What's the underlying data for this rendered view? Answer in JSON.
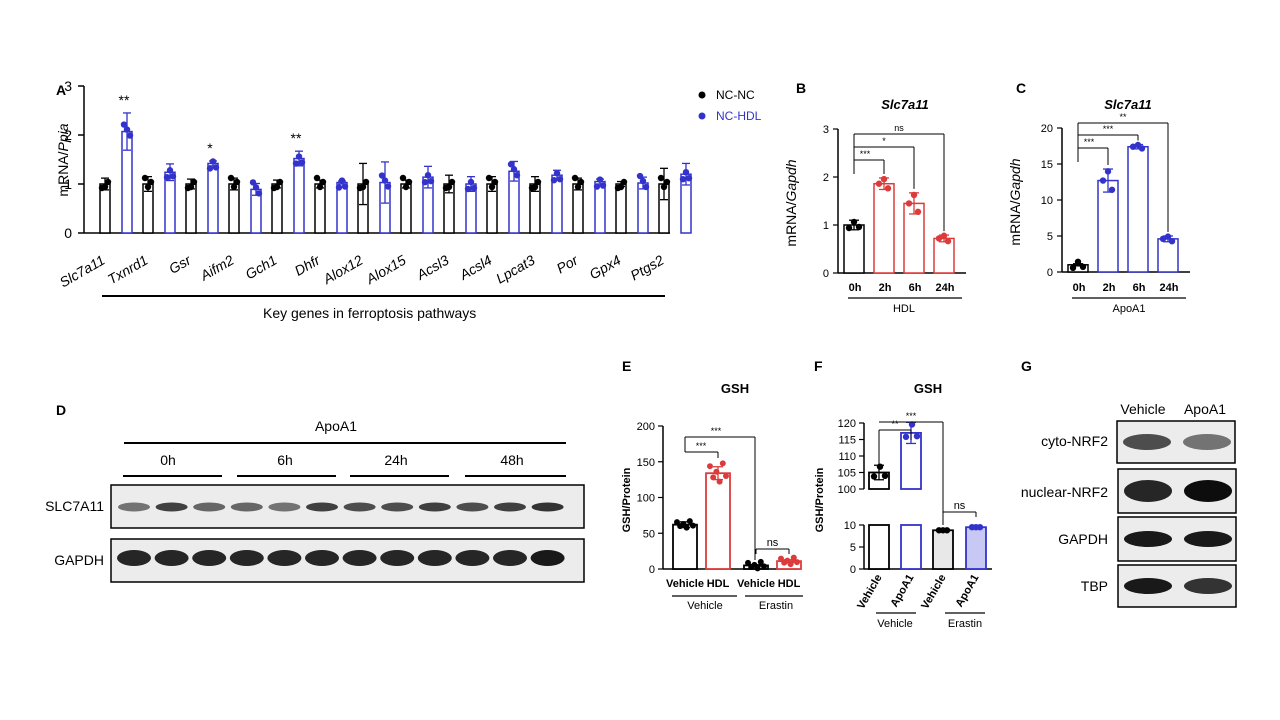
{
  "colors": {
    "black": "#000000",
    "blue": "#3333cc",
    "red": "#dd3b3b",
    "lightblue": "#c8c8f4",
    "fill": "#ffffff",
    "grey": "#e8e8e8"
  },
  "chart_data": [
    {
      "panel": "A",
      "type": "bar",
      "ylabel_prefix": "mRNA/",
      "ylabel_italic": "Ppia",
      "ylim": [
        0,
        3
      ],
      "yticks": [
        "0",
        "1",
        "2",
        "3"
      ],
      "xlabel": "Key genes in ferroptosis pathways",
      "legend": [
        "NC-NC",
        "NC-HDL"
      ],
      "categories": [
        "Slc7a11",
        "Txnrd1",
        "Gsr",
        "Aifm2",
        "Gch1",
        "Dhfr",
        "Alox12",
        "Alox15",
        "Acsl3",
        "Acsl4",
        "Lpcat3",
        "Por",
        "Gpx4",
        "Ptgs2"
      ],
      "series": [
        {
          "name": "NC-NC",
          "values": [
            1.0,
            1.0,
            1.0,
            1.0,
            1.0,
            1.0,
            1.0,
            1.0,
            1.0,
            1.0,
            1.0,
            1.0,
            1.0,
            1.0
          ],
          "err": [
            0.12,
            0.15,
            0.1,
            0.12,
            0.08,
            0.08,
            0.42,
            0.08,
            0.18,
            0.15,
            0.15,
            0.12,
            0.05,
            0.32
          ]
        },
        {
          "name": "NC-HDL",
          "values": [
            2.07,
            1.24,
            1.42,
            0.89,
            1.52,
            1.03,
            1.03,
            1.14,
            1.0,
            1.26,
            1.18,
            1.05,
            1.02,
            1.2
          ],
          "err": [
            0.38,
            0.17,
            0.05,
            0.12,
            0.15,
            0.03,
            0.42,
            0.22,
            0.15,
            0.2,
            0.1,
            0.05,
            0.12,
            0.22
          ]
        }
      ],
      "significance": [
        {
          "index": 0,
          "label": "**"
        },
        {
          "index": 2,
          "label": "*"
        },
        {
          "index": 4,
          "label": "**"
        }
      ]
    },
    {
      "panel": "B",
      "type": "bar",
      "title": "Slc7a11",
      "ylabel_prefix": "mRNA/",
      "ylabel_italic": "Gapdh",
      "ylim": [
        0,
        3
      ],
      "yticks": [
        "0",
        "1",
        "2",
        "3"
      ],
      "categories": [
        "0h",
        "2h",
        "6h",
        "24h"
      ],
      "values": [
        1.0,
        1.86,
        1.45,
        0.72
      ],
      "err": [
        0.1,
        0.12,
        0.22,
        0.07
      ],
      "group": "HDL",
      "comparisons": [
        "***",
        "*",
        "ns"
      ]
    },
    {
      "panel": "C",
      "type": "bar",
      "title": "Slc7a11",
      "ylabel_prefix": "mRNA/",
      "ylabel_italic": "Gapdh",
      "ylim": [
        0,
        20
      ],
      "yticks": [
        "0",
        "5",
        "10",
        "15",
        "20"
      ],
      "categories": [
        "0h",
        "2h",
        "6h",
        "24h"
      ],
      "values": [
        1.0,
        12.7,
        17.4,
        4.6
      ],
      "err": [
        0.15,
        1.6,
        0.3,
        0.4
      ],
      "group": "ApoA1",
      "comparisons": [
        "***",
        "***",
        "**"
      ]
    },
    {
      "panel": "E",
      "type": "bar",
      "title": "GSH",
      "ylabel": "GSH/Protein",
      "ylim": [
        0,
        200
      ],
      "yticks": [
        "0",
        "50",
        "100",
        "150",
        "200"
      ],
      "categories": [
        "Vehicle",
        "HDL",
        "Vehicle",
        "HDL"
      ],
      "groups": [
        "Vehicle",
        "Erastin"
      ],
      "values": [
        62,
        134,
        5,
        11
      ],
      "err": [
        4,
        9,
        1,
        2
      ],
      "comparisons": [
        "***",
        "***",
        "ns"
      ]
    },
    {
      "panel": "F",
      "type": "bar",
      "title": "GSH",
      "ylabel": "GSH/Protein",
      "yticks": [
        "0",
        "5",
        "10",
        "100",
        "105",
        "110",
        "115",
        "120"
      ],
      "categories": [
        "Vehicle",
        "ApoA1",
        "Vehicle",
        "ApoA1"
      ],
      "groups": [
        "Vehicle",
        "Erastin"
      ],
      "values": [
        105,
        117,
        8.8,
        9.5
      ],
      "err": [
        2.2,
        3.2,
        0.1,
        0.4
      ],
      "comparisons": [
        "**",
        "***",
        "ns"
      ]
    }
  ],
  "panel_letters": {
    "A": "A",
    "B": "B",
    "C": "C",
    "D": "D",
    "E": "E",
    "F": "F",
    "G": "G"
  },
  "blot_d": {
    "treatment": "ApoA1",
    "timepoints": [
      "0h",
      "6h",
      "24h",
      "48h"
    ],
    "rows": [
      "SLC7A11",
      "GAPDH"
    ],
    "slc7a11_intensity": [
      0.55,
      0.75,
      0.6,
      0.6,
      0.55,
      0.75,
      0.7,
      0.7,
      0.75,
      0.7,
      0.75,
      0.8
    ],
    "gapdh_intensity": [
      0.85,
      0.85,
      0.85,
      0.85,
      0.85,
      0.85,
      0.85,
      0.85,
      0.85,
      0.85,
      0.85,
      0.9
    ]
  },
  "blot_g": {
    "columns": [
      "Vehicle",
      "ApoA1"
    ],
    "rows": [
      "cyto-NRF2",
      "nuclear-NRF2",
      "GAPDH",
      "TBP"
    ],
    "intensity": [
      [
        0.7,
        0.55
      ],
      [
        0.85,
        0.95
      ],
      [
        0.9,
        0.9
      ],
      [
        0.9,
        0.8
      ]
    ]
  }
}
